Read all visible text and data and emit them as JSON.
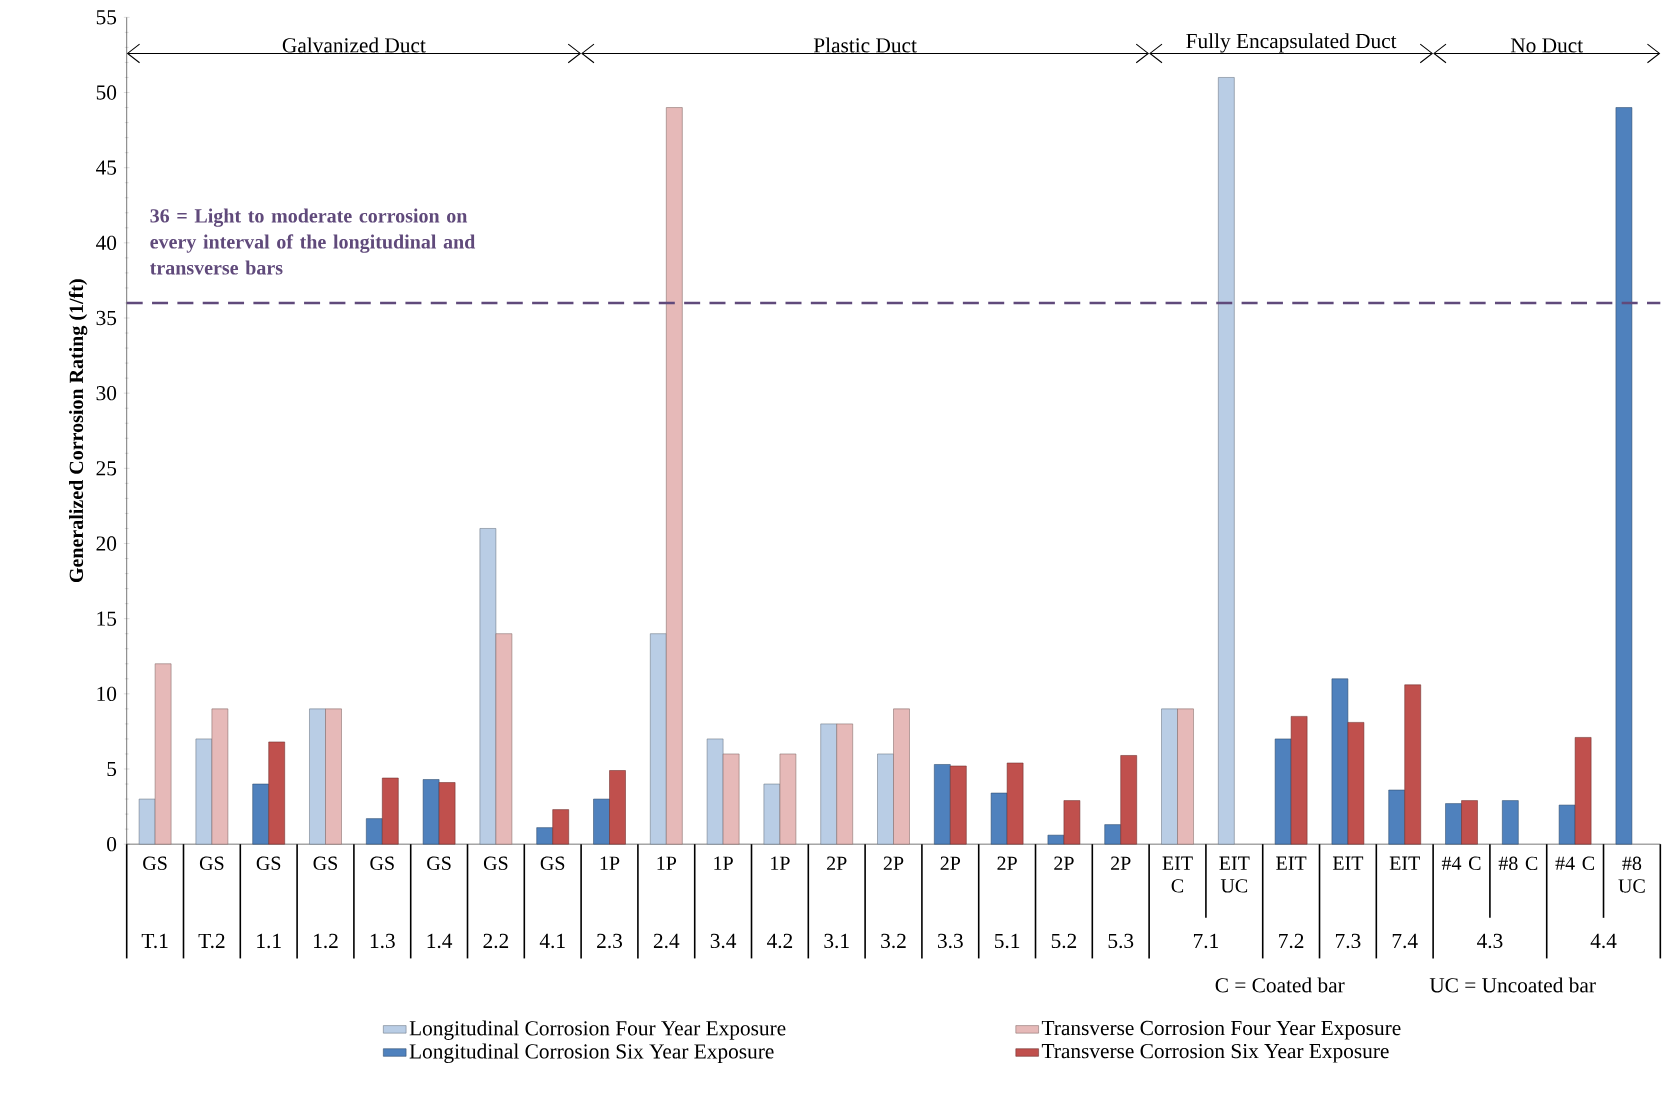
{
  "chart_data": {
    "type": "bar",
    "ylabel": "Generalized Corrosion Rating (1/ft)",
    "categories": [
      "GS",
      "GS",
      "GS",
      "GS",
      "GS",
      "GS",
      "GS",
      "GS",
      "1P",
      "1P",
      "1P",
      "1P",
      "2P",
      "2P",
      "2P",
      "2P",
      "2P",
      "2P",
      "EIT C",
      "EIT UC",
      "EIT",
      "EIT",
      "EIT",
      "#4 C",
      "#8 C",
      "#4 C",
      "#8 UC"
    ],
    "series": [
      {
        "name": "Longitudinal Corrosion Four Year Exposure",
        "color": "#b9cde5",
        "values": [
          3,
          7,
          null,
          9,
          null,
          null,
          21,
          null,
          null,
          14,
          7,
          4,
          8,
          6,
          null,
          null,
          null,
          null,
          9,
          51,
          null,
          null,
          null,
          null,
          null,
          null,
          null
        ]
      },
      {
        "name": "Transverse Corrosion Four Year Exposure",
        "color": "#e6b9b8",
        "values": [
          12,
          9,
          null,
          9,
          null,
          null,
          14,
          null,
          null,
          49,
          6,
          6,
          8,
          9,
          null,
          null,
          null,
          null,
          9,
          null,
          null,
          null,
          null,
          null,
          null,
          null,
          null
        ]
      },
      {
        "name": "Longitudinal Corrosion Six Year Exposure",
        "color": "#4f81bd",
        "values": [
          null,
          null,
          4,
          null,
          1.7,
          4.3,
          null,
          1.1,
          3,
          null,
          null,
          null,
          null,
          null,
          5.3,
          3.4,
          0.6,
          1.3,
          null,
          null,
          7,
          11,
          3.6,
          2.7,
          2.9,
          2.6,
          49
        ]
      },
      {
        "name": "Transverse Corrosion Six Year Exposure",
        "color": "#c0504d",
        "values": [
          null,
          null,
          6.8,
          null,
          4.4,
          4.1,
          null,
          2.3,
          4.9,
          null,
          null,
          null,
          null,
          null,
          5.2,
          5.4,
          2.9,
          5.9,
          null,
          null,
          8.5,
          8.1,
          10.6,
          2.9,
          null,
          7.1,
          null
        ]
      }
    ],
    "ylim": [
      0,
      55
    ],
    "yticks": [
      0,
      5,
      10,
      15,
      20,
      25,
      30,
      35,
      40,
      45,
      50,
      55
    ],
    "ref_lines": [
      {
        "axis": "y",
        "value": 36,
        "label": "36 = Light to moderate corrosion on every interval of the longitudinal and transverse bars",
        "color": "#604a7b",
        "line_style": "dashed"
      }
    ],
    "annotations": [
      "Galvanized Duct",
      "Plastic Duct",
      "Fully Encapsulated Duct",
      "No Duct",
      "T.1",
      "T.2",
      "1.1",
      "1.2",
      "1.3",
      "1.4",
      "2.2",
      "4.1",
      "2.3",
      "2.4",
      "3.4",
      "4.2",
      "3.1",
      "3.2",
      "3.3",
      "5.1",
      "5.2",
      "5.3",
      "7.1",
      "7.2",
      "7.3",
      "7.4",
      "4.3",
      "4.4",
      "C = Coated bar",
      "UC = Uncoated bar"
    ],
    "legend": "bottom",
    "grid": false
  }
}
